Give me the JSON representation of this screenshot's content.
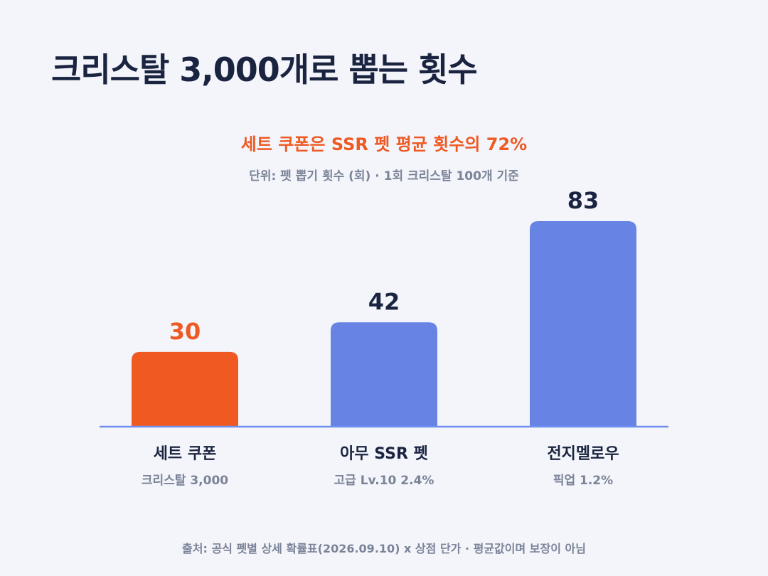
{
  "title": "크리스탈 3,000개로 뽑는 횟수",
  "subtitle": "세트 쿠폰은 SSR 펫 평균 횟수의 72%",
  "unit_note": "단위: 펫 뽑기 횟수 (회) · 1회 크리스탈 100개 기준",
  "source": "출처: 공식 펫별 상세 확률표(2026.09.10) x 상점 단가 · 평균값이며 보장이 아님",
  "colors": {
    "highlight": "#f05a22",
    "bar": "#6783e4",
    "axis": "#6e8ff0",
    "value_dark": "#1a2440",
    "value_highlight": "#ee5a24"
  },
  "chart_data": {
    "type": "bar",
    "categories": [
      "세트 쿠폰",
      "아무 SSR 펫",
      "전지멜로우"
    ],
    "sublabels": [
      "크리스탈 3,000",
      "고급 Lv.10 2.4%",
      "픽업 1.2%"
    ],
    "values": [
      30,
      42,
      83
    ],
    "data_labels": [
      "30",
      "42",
      "83"
    ],
    "highlight_index": 0,
    "ylim": [
      0,
      100
    ],
    "grid": false,
    "legend": "none"
  }
}
